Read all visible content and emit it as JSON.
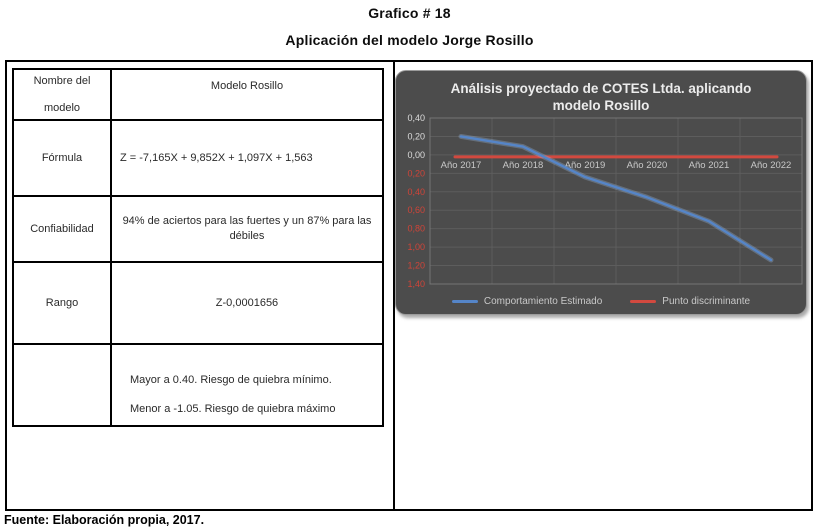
{
  "header": {
    "title1": "Grafico # 18",
    "title2": "Aplicación del modelo Jorge Rosillo"
  },
  "table": {
    "rows": [
      {
        "label": "Nombre del modelo",
        "label_lines": [
          "Nombre del",
          "modelo"
        ],
        "value": "Modelo Rosillo"
      },
      {
        "label": "Fórmula",
        "value": "Z = -7,165X + 9,852X + 1,097X + 1,563"
      },
      {
        "label": "Confiabilidad",
        "value": "94% de aciertos para las fuertes y un 87% para las débiles"
      },
      {
        "label": "Rango",
        "value": "Z-0,0001656"
      },
      {
        "label": "",
        "value_lines": [
          "Mayor a 0.40. Riesgo de quiebra mínimo.",
          "Menor a -1.05. Riesgo de quiebra máximo"
        ]
      }
    ]
  },
  "chart_data": {
    "type": "line",
    "title": "Análisis proyectado de COTES Ltda. aplicando modelo Rosillo",
    "categories": [
      "Año 2017",
      "Año 2018",
      "Año 2019",
      "Año 2020",
      "Año 2021",
      "Año 2022"
    ],
    "series": [
      {
        "name": "Comportamiento Estimado",
        "color": "#5585c8",
        "glow_color": "#9fc0e8",
        "values": [
          0.2,
          0.09,
          -0.24,
          -0.46,
          -0.72,
          -1.14
        ]
      },
      {
        "name": "Punto discriminante",
        "color": "#d2493f",
        "values": [
          -0.0001656,
          -0.0001656,
          -0.0001656,
          -0.0001656,
          -0.0001656,
          -0.0001656
        ]
      }
    ],
    "ylim": [
      -1.4,
      0.4
    ],
    "y_tick_step": 0.2,
    "positive_tick_color": "#dcdcdc",
    "negative_tick_color": "#d04438",
    "category_label_color": "#c8c8c8",
    "grid": true,
    "grid_color": "#5d5d5d",
    "plot_border_color": "#757575",
    "plot_bg": "#4c4c4c",
    "legend_position": "bottom"
  },
  "footer": {
    "source": "Fuente: Elaboración propia, 2017."
  }
}
